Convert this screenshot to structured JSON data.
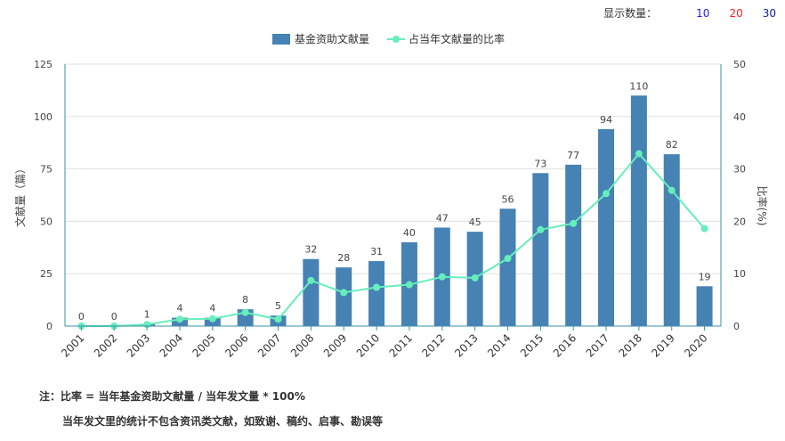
{
  "controls": {
    "display_label": "显示数量：",
    "options": [
      {
        "label": "10",
        "color": "#1a1aff"
      },
      {
        "label": "20",
        "color": "#ff2020"
      },
      {
        "label": "30",
        "color": "#1a1a99"
      }
    ]
  },
  "notes": {
    "line1": "注：比率 = 当年基金资助文献量 / 当年发文量 * 100%",
    "line2": "当年发文里的统计不包含资讯类文献，如致谢、稿约、启事、勘误等"
  },
  "chart_data": {
    "type": "bar",
    "categories": [
      "2001",
      "2002",
      "2003",
      "2004",
      "2005",
      "2006",
      "2007",
      "2008",
      "2009",
      "2010",
      "2011",
      "2012",
      "2013",
      "2014",
      "2015",
      "2016",
      "2017",
      "2018",
      "2019",
      "2020"
    ],
    "series": [
      {
        "name": "基金资助文献量",
        "type": "bar",
        "axis": "left",
        "color": "#4682b4",
        "values": [
          0,
          0,
          1,
          4,
          4,
          8,
          5,
          32,
          28,
          31,
          40,
          47,
          45,
          56,
          73,
          77,
          94,
          110,
          82,
          19
        ]
      },
      {
        "name": "占当年文献量的比率",
        "type": "line",
        "axis": "right",
        "color": "#66eebb",
        "values": [
          0,
          0,
          0.3,
          1.3,
          1.4,
          2.6,
          1.3,
          8.7,
          6.4,
          7.4,
          7.9,
          9.4,
          9.2,
          12.9,
          18.4,
          19.6,
          25.3,
          32.9,
          25.9,
          18.6
        ]
      }
    ],
    "ylabel": "文献量（篇）",
    "y2label": "比率(%)",
    "ylim": [
      0,
      125
    ],
    "y2lim": [
      0,
      50
    ],
    "yticks": [
      0,
      25,
      50,
      75,
      100,
      125
    ],
    "y2ticks": [
      0,
      10,
      20,
      30,
      40,
      50
    ],
    "grid": true,
    "legend": "top-center"
  }
}
